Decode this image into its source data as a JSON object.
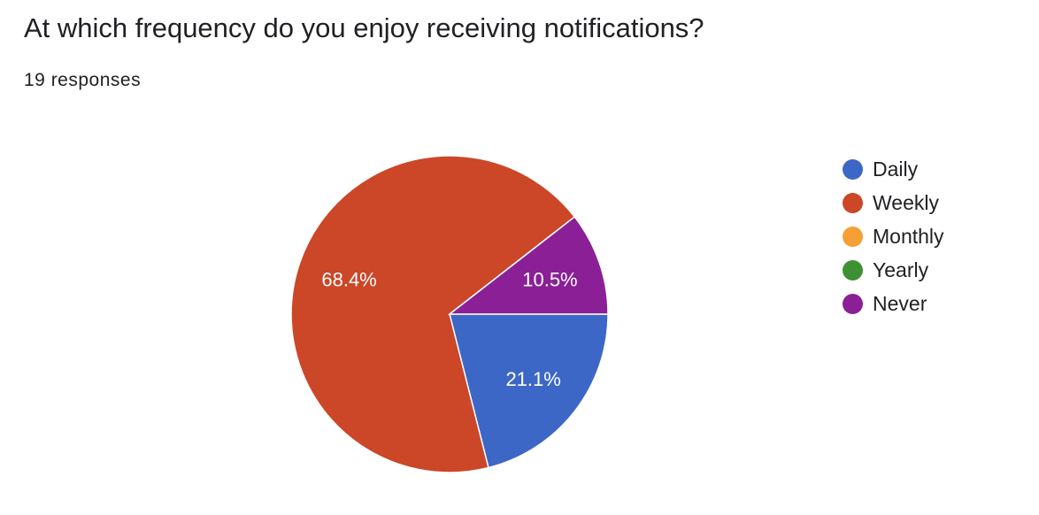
{
  "question": {
    "title": "At which frequency do you enjoy receiving notifications?",
    "responses_text": "19 responses"
  },
  "chart_data": {
    "type": "pie",
    "total_responses": 19,
    "categories": [
      "Daily",
      "Weekly",
      "Monthly",
      "Yearly",
      "Never"
    ],
    "colors": [
      "#3d67c6",
      "#cc4628",
      "#f5a036",
      "#3e9132",
      "#8b1f96"
    ],
    "counts": [
      4,
      13,
      0,
      0,
      2
    ],
    "percentages": [
      21.1,
      68.4,
      0,
      0,
      10.5
    ],
    "labels": [
      "21.1%",
      "68.4%",
      "",
      "",
      "10.5%"
    ],
    "legend_position": "right"
  }
}
